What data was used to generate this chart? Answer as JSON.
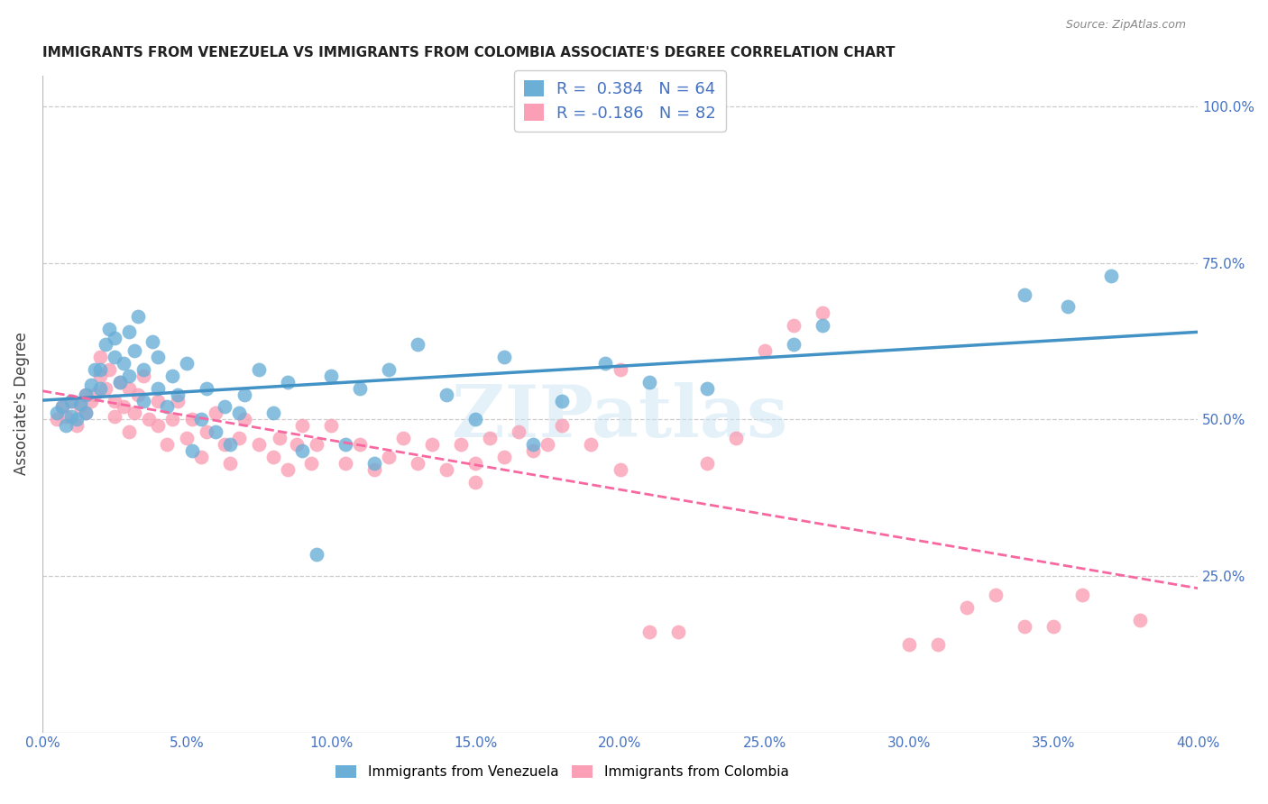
{
  "title": "IMMIGRANTS FROM VENEZUELA VS IMMIGRANTS FROM COLOMBIA ASSOCIATE'S DEGREE CORRELATION CHART",
  "source": "Source: ZipAtlas.com",
  "ylabel": "Associate's Degree",
  "xlim": [
    0.0,
    0.4
  ],
  "ylim": [
    0.0,
    1.05
  ],
  "watermark": "ZIPatlas",
  "blue_color": "#6baed6",
  "pink_color": "#fa9fb5",
  "blue_line_color": "#4292c6",
  "pink_line_color": "#f768a1",
  "venezuela_label": "Immigrants from Venezuela",
  "colombia_label": "Immigrants from Colombia",
  "venezuela_R": 0.384,
  "venezuela_N": 64,
  "colombia_R": -0.186,
  "colombia_N": 82,
  "venezuela_scatter_x": [
    0.005,
    0.007,
    0.008,
    0.01,
    0.01,
    0.012,
    0.013,
    0.015,
    0.015,
    0.017,
    0.018,
    0.02,
    0.02,
    0.022,
    0.023,
    0.025,
    0.025,
    0.027,
    0.028,
    0.03,
    0.03,
    0.032,
    0.033,
    0.035,
    0.035,
    0.038,
    0.04,
    0.04,
    0.043,
    0.045,
    0.047,
    0.05,
    0.052,
    0.055,
    0.057,
    0.06,
    0.063,
    0.065,
    0.068,
    0.07,
    0.075,
    0.08,
    0.085,
    0.09,
    0.095,
    0.1,
    0.105,
    0.11,
    0.115,
    0.12,
    0.13,
    0.14,
    0.15,
    0.16,
    0.17,
    0.18,
    0.195,
    0.21,
    0.23,
    0.26,
    0.27,
    0.34,
    0.355,
    0.37
  ],
  "venezuela_scatter_y": [
    0.51,
    0.52,
    0.49,
    0.505,
    0.53,
    0.5,
    0.525,
    0.51,
    0.54,
    0.555,
    0.58,
    0.55,
    0.58,
    0.62,
    0.645,
    0.6,
    0.63,
    0.56,
    0.59,
    0.64,
    0.57,
    0.61,
    0.665,
    0.53,
    0.58,
    0.625,
    0.55,
    0.6,
    0.52,
    0.57,
    0.54,
    0.59,
    0.45,
    0.5,
    0.55,
    0.48,
    0.52,
    0.46,
    0.51,
    0.54,
    0.58,
    0.51,
    0.56,
    0.45,
    0.285,
    0.57,
    0.46,
    0.55,
    0.43,
    0.58,
    0.62,
    0.54,
    0.5,
    0.6,
    0.46,
    0.53,
    0.59,
    0.56,
    0.55,
    0.62,
    0.65,
    0.7,
    0.68,
    0.73
  ],
  "colombia_scatter_x": [
    0.005,
    0.007,
    0.008,
    0.01,
    0.012,
    0.013,
    0.015,
    0.015,
    0.017,
    0.018,
    0.02,
    0.02,
    0.022,
    0.023,
    0.025,
    0.025,
    0.027,
    0.028,
    0.03,
    0.03,
    0.032,
    0.033,
    0.035,
    0.037,
    0.04,
    0.04,
    0.043,
    0.045,
    0.047,
    0.05,
    0.052,
    0.055,
    0.057,
    0.06,
    0.063,
    0.065,
    0.068,
    0.07,
    0.075,
    0.08,
    0.082,
    0.085,
    0.088,
    0.09,
    0.093,
    0.095,
    0.1,
    0.105,
    0.11,
    0.115,
    0.12,
    0.125,
    0.13,
    0.135,
    0.14,
    0.145,
    0.15,
    0.155,
    0.16,
    0.165,
    0.17,
    0.175,
    0.18,
    0.19,
    0.2,
    0.21,
    0.22,
    0.23,
    0.24,
    0.25,
    0.26,
    0.27,
    0.3,
    0.31,
    0.32,
    0.33,
    0.34,
    0.35,
    0.36,
    0.38,
    0.2,
    0.15
  ],
  "colombia_scatter_y": [
    0.5,
    0.52,
    0.505,
    0.53,
    0.49,
    0.52,
    0.54,
    0.51,
    0.53,
    0.54,
    0.57,
    0.6,
    0.55,
    0.58,
    0.505,
    0.53,
    0.56,
    0.52,
    0.55,
    0.48,
    0.51,
    0.54,
    0.57,
    0.5,
    0.53,
    0.49,
    0.46,
    0.5,
    0.53,
    0.47,
    0.5,
    0.44,
    0.48,
    0.51,
    0.46,
    0.43,
    0.47,
    0.5,
    0.46,
    0.44,
    0.47,
    0.42,
    0.46,
    0.49,
    0.43,
    0.46,
    0.49,
    0.43,
    0.46,
    0.42,
    0.44,
    0.47,
    0.43,
    0.46,
    0.42,
    0.46,
    0.43,
    0.47,
    0.44,
    0.48,
    0.45,
    0.46,
    0.49,
    0.46,
    0.42,
    0.16,
    0.16,
    0.43,
    0.47,
    0.61,
    0.65,
    0.67,
    0.14,
    0.14,
    0.2,
    0.22,
    0.17,
    0.17,
    0.22,
    0.18,
    0.58,
    0.4
  ]
}
